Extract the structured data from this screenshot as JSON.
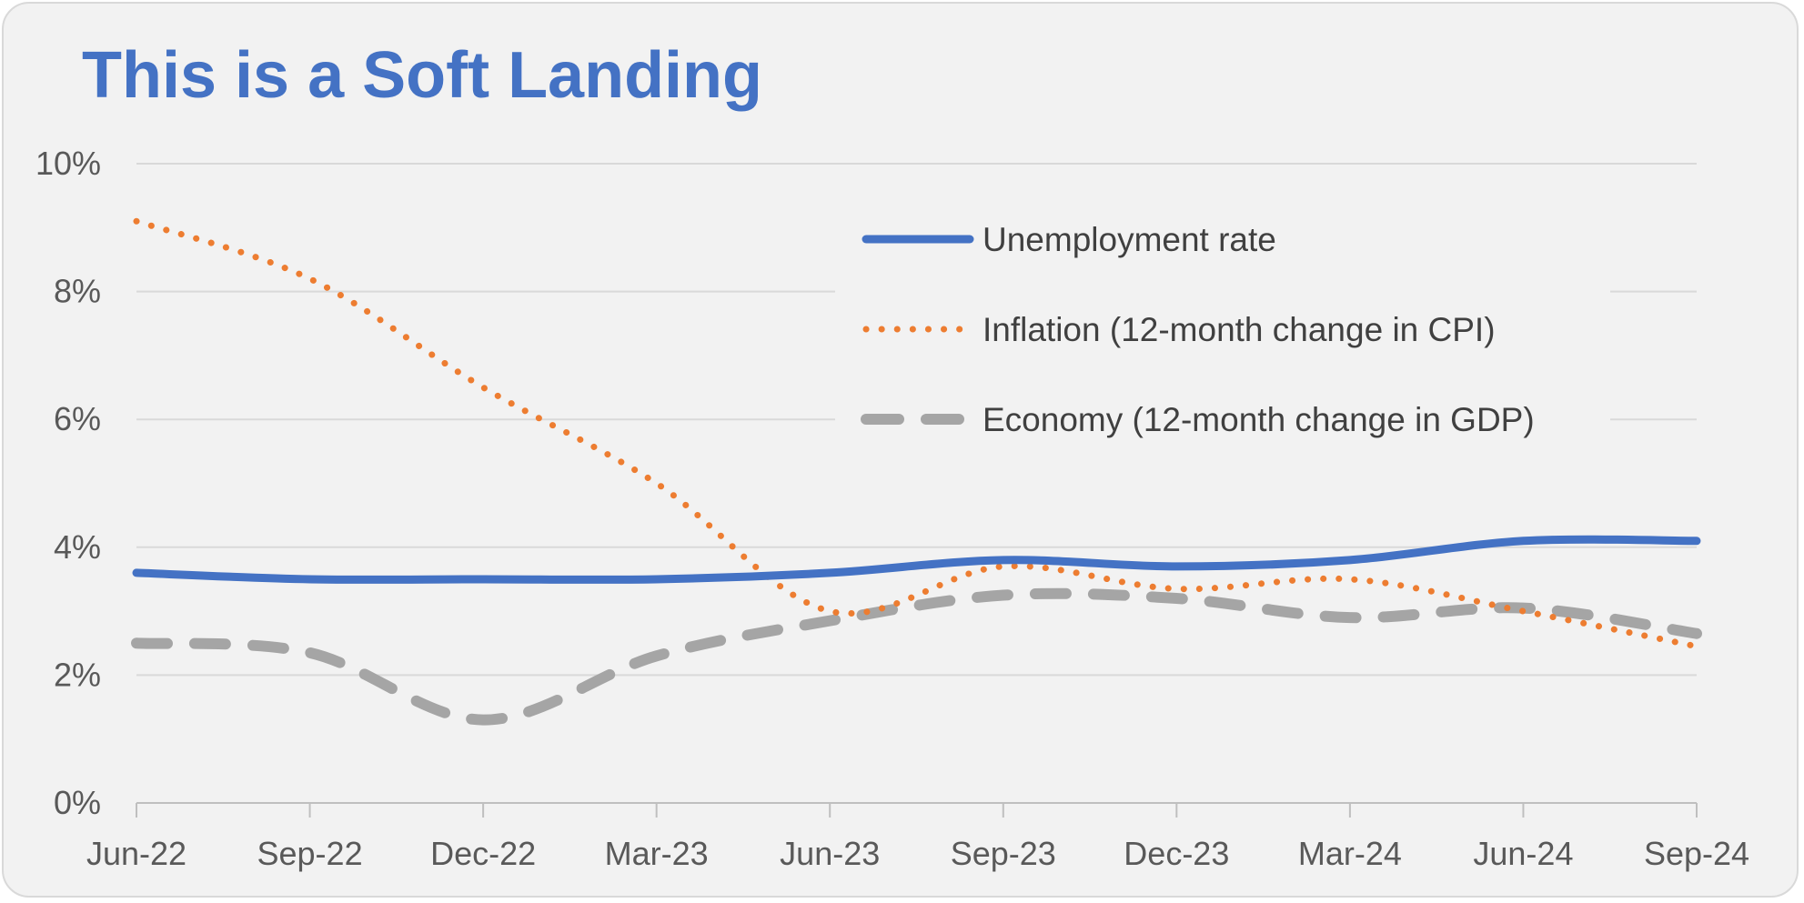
{
  "title": "This is a Soft Landing",
  "chart_data": {
    "type": "line",
    "title": "This is a Soft Landing",
    "x_tick_labels": [
      "Jun-22",
      "Sep-22",
      "Dec-22",
      "Mar-23",
      "Jun-23",
      "Sep-23",
      "Dec-23",
      "Mar-24",
      "Jun-24",
      "Sep-24"
    ],
    "y_tick_labels": [
      "0%",
      "2%",
      "4%",
      "6%",
      "8%",
      "10%"
    ],
    "ylim": [
      0,
      10
    ],
    "grid": true,
    "legend_position": "top-right",
    "series": [
      {
        "name": "Unemployment rate",
        "style": "solid",
        "color": "#4472c4",
        "values": [
          3.6,
          3.5,
          3.5,
          3.5,
          3.6,
          3.8,
          3.7,
          3.8,
          4.1,
          4.1
        ]
      },
      {
        "name": "Inflation (12-month change in CPI)",
        "style": "dotted",
        "color": "#ed7d31",
        "values": [
          9.1,
          8.2,
          6.5,
          5.0,
          3.0,
          3.7,
          3.35,
          3.5,
          3.0,
          2.45
        ]
      },
      {
        "name": "Economy (12-month change in GDP)",
        "style": "dashed",
        "color": "#a5a5a5",
        "values": [
          2.5,
          2.35,
          1.3,
          2.3,
          2.85,
          3.25,
          3.2,
          2.9,
          3.05,
          2.65
        ]
      }
    ]
  }
}
